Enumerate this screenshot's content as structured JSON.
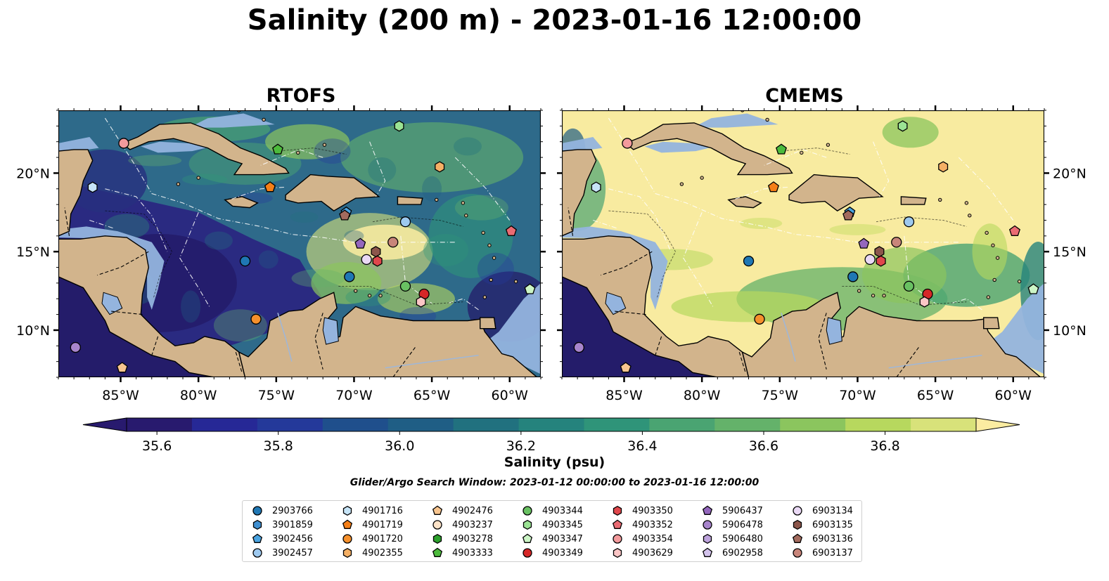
{
  "title": "Salinity (200 m) - 2023-01-16 12:00:00",
  "panels": [
    {
      "title": "RTOFS",
      "id": "rtofs"
    },
    {
      "title": "CMEMS",
      "id": "cmems"
    }
  ],
  "axes": {
    "lon_ticks": [
      "85°W",
      "80°W",
      "75°W",
      "70°W",
      "65°W",
      "60°W"
    ],
    "lat_ticks": [
      "20°N",
      "15°N",
      "10°N"
    ],
    "extent": {
      "lon": [
        -89,
        -58
      ],
      "lat": [
        7,
        24
      ]
    }
  },
  "colorbar": {
    "label": "Salinity (psu)",
    "ticks": [
      "35.6",
      "35.8",
      "36.0",
      "36.2",
      "36.4",
      "36.6",
      "36.8"
    ],
    "range": [
      35.55,
      36.95
    ],
    "colors": [
      "#281a6e",
      "#262896",
      "#24399a",
      "#1f4f8c",
      "#1f5e85",
      "#21717f",
      "#25837d",
      "#2f9479",
      "#4aa472",
      "#64b26a",
      "#8bc55e",
      "#b7d85e",
      "#d8e27a"
    ],
    "over_color": "#fbeca1",
    "under_color": "#281a6e"
  },
  "search_window": "Glider/Argo Search Window: 2023-01-12 00:00:00 to 2023-01-16 12:00:00",
  "colors": {
    "land": "#d2b48c",
    "shallow": "#94b4de",
    "rtofs_sea": "#2e6a8a",
    "cmems_sea": "#f8eba0"
  },
  "legend": [
    {
      "id": "2903766",
      "color": "#1f77b4",
      "marker": "circle",
      "lon": -77,
      "lat": 14.4
    },
    {
      "id": "3901859",
      "color": "#3f8fd0",
      "marker": "hexagon",
      "lon": null,
      "lat": null
    },
    {
      "id": "3902456",
      "color": "#4aa3e0",
      "marker": "pentagon",
      "lon": -70.5,
      "lat": 17.5
    },
    {
      "id": "3902457",
      "color": "#9ec9ef",
      "marker": "circle",
      "lon": -66.7,
      "lat": 16.9
    },
    {
      "id": "4901716",
      "color": "#c6e4f7",
      "marker": "hexagon",
      "lon": -86.8,
      "lat": 19.1
    },
    {
      "id": "4901719",
      "color": "#f57f17",
      "marker": "pentagon",
      "lon": -75.4,
      "lat": 19.1
    },
    {
      "id": "4901720",
      "color": "#f5902c",
      "marker": "circle",
      "lon": -76.3,
      "lat": 10.7
    },
    {
      "id": "4902355",
      "color": "#f5b065",
      "marker": "hexagon",
      "lon": -64.5,
      "lat": 20.4
    },
    {
      "id": "4902476",
      "color": "#f8c58f",
      "marker": "pentagon",
      "lon": -84.9,
      "lat": 7.6
    },
    {
      "id": "4903237",
      "color": "#fde3c8",
      "marker": "circle",
      "lon": null,
      "lat": null
    },
    {
      "id": "4903278",
      "color": "#2ca02c",
      "marker": "hexagon",
      "lon": null,
      "lat": null
    },
    {
      "id": "4903333",
      "color": "#4cbb3c",
      "marker": "pentagon",
      "lon": -74.9,
      "lat": 21.5
    },
    {
      "id": "4903344",
      "color": "#69c162",
      "marker": "circle",
      "lon": -66.7,
      "lat": 12.8
    },
    {
      "id": "4903345",
      "color": "#9be394",
      "marker": "hexagon",
      "lon": -67.1,
      "lat": 23.0
    },
    {
      "id": "4903347",
      "color": "#ccf5c6",
      "marker": "pentagon",
      "lon": -58.7,
      "lat": 12.6
    },
    {
      "id": "4903349",
      "color": "#d62728",
      "marker": "circle",
      "lon": -65.5,
      "lat": 12.3
    },
    {
      "id": "4903350",
      "color": "#e0474c",
      "marker": "hexagon",
      "lon": -68.5,
      "lat": 14.4
    },
    {
      "id": "4903352",
      "color": "#ea6b73",
      "marker": "pentagon",
      "lon": -59.9,
      "lat": 16.3
    },
    {
      "id": "4903354",
      "color": "#f39a9c",
      "marker": "circle",
      "lon": -84.8,
      "lat": 21.9
    },
    {
      "id": "4903629",
      "color": "#fbc6c6",
      "marker": "hexagon",
      "lon": -65.7,
      "lat": 11.8
    },
    {
      "id": "5906437",
      "color": "#9467bd",
      "marker": "pentagon",
      "lon": -69.6,
      "lat": 15.5
    },
    {
      "id": "5906478",
      "color": "#a885cc",
      "marker": "circle",
      "lon": null,
      "lat": null
    },
    {
      "id": "5906480",
      "color": "#bda3dc",
      "marker": "hexagon",
      "lon": null,
      "lat": null
    },
    {
      "id": "6902958",
      "color": "#d3c3ec",
      "marker": "pentagon",
      "lon": null,
      "lat": null
    },
    {
      "id": "6903134",
      "color": "#ead9f5",
      "marker": "circle",
      "lon": -69.2,
      "lat": 14.5
    },
    {
      "id": "6903135",
      "color": "#8c564b",
      "marker": "hexagon",
      "lon": -68.6,
      "lat": 15.0
    },
    {
      "id": "6903136",
      "color": "#a36b5e",
      "marker": "pentagon",
      "lon": -70.6,
      "lat": 17.3
    },
    {
      "id": "6903137",
      "color": "#c8857a",
      "marker": "circle",
      "lon": -67.5,
      "lat": 15.6
    }
  ],
  "extra_markers": [
    {
      "color": "#1f77b4",
      "marker": "circle",
      "lon": -70.3,
      "lat": 13.4
    },
    {
      "color": "#a885cc",
      "marker": "circle",
      "lon": -87.9,
      "lat": 8.9
    }
  ]
}
